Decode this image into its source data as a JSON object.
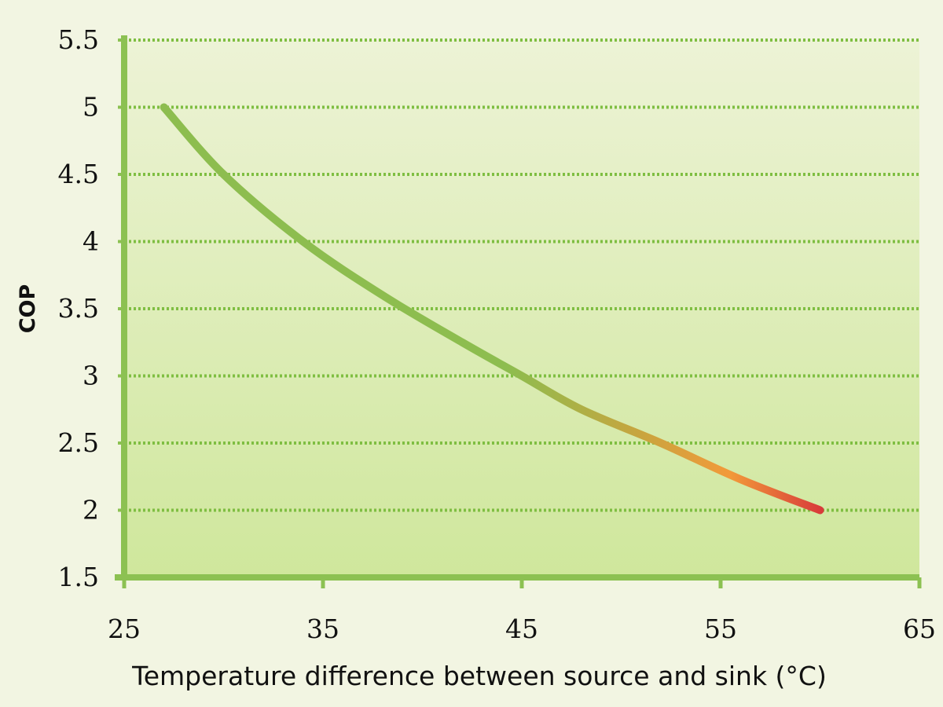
{
  "chart_data": {
    "type": "line",
    "title": "",
    "xlabel": "Temperature difference between source and sink (°C)",
    "ylabel": "COP",
    "xlim": [
      25,
      65
    ],
    "ylim": [
      1.5,
      5.5
    ],
    "x_ticks": [
      25,
      35,
      45,
      55,
      65
    ],
    "x_tick_labels": [
      "25",
      "35",
      "45",
      "55",
      "65"
    ],
    "y_ticks": [
      1.5,
      2,
      2.5,
      3,
      3.5,
      4,
      4.5,
      5,
      5.5
    ],
    "y_tick_labels": [
      "1.5",
      "2",
      "2.5",
      "3",
      "3.5",
      "4",
      "4.5",
      "5",
      "5.5"
    ],
    "grid": "horizontal dotted",
    "series": [
      {
        "name": "COP",
        "x": [
          27,
          30,
          34,
          38,
          42,
          45,
          48,
          52,
          56,
          60
        ],
        "y": [
          5.0,
          4.5,
          4.0,
          3.6,
          3.25,
          3.0,
          2.75,
          2.5,
          2.23,
          2.0
        ]
      }
    ],
    "line_gradient": [
      "#8dbd4f",
      "#8dbd4f",
      "#c7a53f",
      "#f29a3a",
      "#d83a3a"
    ]
  },
  "colors": {
    "axis": "#8cc152",
    "grid": "#7fbe42",
    "plot_bg_top": "#edf3d6",
    "plot_bg_bottom": "#cfe79c"
  }
}
